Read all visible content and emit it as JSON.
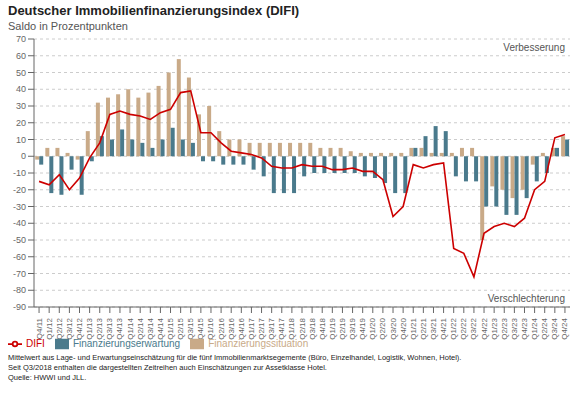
{
  "chart_data": {
    "type": "bar",
    "title": "Deutscher Immobilienfinanzierungsindex (DIFI)",
    "subtitle": "Saldo in Prozentpunkten",
    "categories": [
      "Q4/11",
      "Q1/12",
      "Q2/12",
      "Q3/12",
      "Q4/12",
      "Q1/13",
      "Q2/13",
      "Q3/13",
      "Q4/13",
      "Q1/14",
      "Q2/14",
      "Q3/14",
      "Q4/14",
      "Q1/15",
      "Q2/15",
      "Q3/15",
      "Q4/15",
      "Q1/16",
      "Q2/16",
      "Q3/16",
      "Q4/16",
      "Q1/17",
      "Q2/17",
      "Q3/17",
      "Q4/17",
      "Q1/18",
      "Q2/18",
      "Q3/18",
      "Q4/18",
      "Q1/19",
      "Q2/19",
      "Q3/19",
      "Q4/19",
      "Q1/20",
      "Q2/20",
      "Q3/20",
      "Q4/20",
      "Q1/21",
      "Q2/21",
      "Q3/21",
      "Q4/21",
      "Q1/22",
      "Q2/22",
      "Q3/22",
      "Q4/22",
      "Q1/23",
      "Q2/23",
      "Q3/23",
      "Q4/23",
      "Q1/24",
      "Q2/24",
      "Q3/24",
      "Q4/24"
    ],
    "series": [
      {
        "name": "Finanzierungssituation",
        "type": "bar",
        "color": "#c9aa88",
        "values": [
          -2,
          5,
          5,
          2,
          -2,
          15,
          32,
          35,
          37,
          40,
          35,
          38,
          42,
          50,
          58,
          47,
          25,
          30,
          15,
          10,
          10,
          8,
          8,
          8,
          8,
          8,
          8,
          8,
          5,
          5,
          5,
          3,
          2,
          2,
          2,
          2,
          2,
          5,
          5,
          2,
          2,
          2,
          5,
          5,
          -50,
          -18,
          -20,
          -25,
          -20,
          -5,
          2,
          5,
          12
        ]
      },
      {
        "name": "Finanzierungserwartung",
        "type": "bar",
        "color": "#4a7a8c",
        "values": [
          -5,
          -22,
          -23,
          -8,
          -23,
          -3,
          12,
          10,
          16,
          10,
          8,
          5,
          10,
          17,
          10,
          8,
          -3,
          -3,
          -5,
          -5,
          -5,
          -8,
          -12,
          -22,
          -22,
          -22,
          -12,
          -10,
          -10,
          -10,
          -10,
          -10,
          -12,
          -13,
          -16,
          -22,
          -22,
          5,
          12,
          18,
          15,
          -12,
          -15,
          -15,
          -30,
          -30,
          -35,
          -35,
          -25,
          -15,
          -10,
          5,
          10
        ]
      },
      {
        "name": "DIFI",
        "type": "line",
        "color": "#cc0000",
        "values": [
          -15,
          -17,
          -11,
          -20,
          -13,
          -1,
          8,
          25,
          27,
          25,
          24,
          22,
          26,
          28,
          38,
          39,
          14,
          14,
          8,
          3,
          2,
          1,
          -1,
          -6,
          -7,
          -7,
          -5,
          -6,
          -6,
          -8,
          -8,
          -7,
          -9,
          -9,
          -14,
          -36,
          -30,
          -5,
          -7,
          -5,
          -4,
          -55,
          -58,
          -72,
          -46,
          -42,
          -40,
          -42,
          -37,
          -20,
          -15,
          11,
          13
        ]
      }
    ],
    "ylim": [
      -90,
      70
    ],
    "yticks": [
      -90,
      -80,
      -70,
      -60,
      -50,
      -40,
      -30,
      -20,
      -10,
      0,
      10,
      20,
      30,
      40,
      50,
      60,
      70
    ],
    "grid": true,
    "legend": "bottom",
    "annotations": [
      "Verbesserung",
      "Verschlechterung"
    ],
    "footnotes": [
      "Mittelwert aus Lage- und Erwartungseinschätzung für die fünf Immobilienmarktsegemente (Büro, Einzelhandel, Logistik, Wohnen, Hotel).",
      "Seit Q3/2018 enthalten die dargestellten Zeitreihen auch Einschätzungen zur Assetklasse Hotel.",
      "Quelle: HWWI und JLL."
    ]
  }
}
